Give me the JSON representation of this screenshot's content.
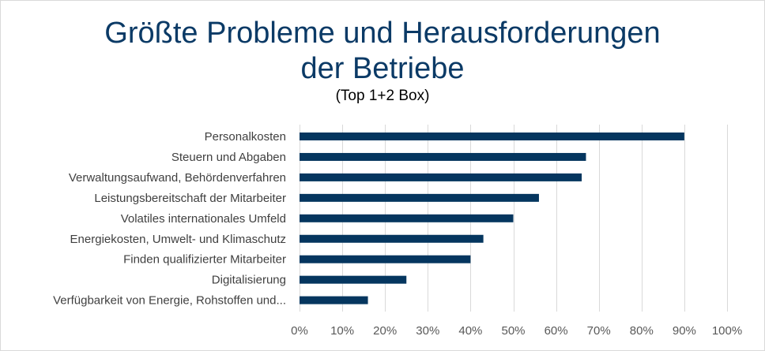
{
  "colors": {
    "bar": "#05365f",
    "grid": "#d9d9d9",
    "title": "#0b3a66"
  },
  "chart_data": {
    "type": "bar",
    "orientation": "horizontal",
    "title_line1": "Größte Probleme und Herausforderungen",
    "title_line2": "der Betriebe",
    "subtitle": "(Top 1+2 Box)",
    "categories": [
      "Personalkosten",
      "Steuern und Abgaben",
      "Verwaltungsaufwand, Behördenverfahren",
      "Leistungsbereitschaft der Mitarbeiter",
      "Volatiles internationales Umfeld",
      "Energiekosten, Umwelt- und Klimaschutz",
      "Finden qualifizierter Mitarbeiter",
      "Digitalisierung",
      "Verfügbarkeit von Energie, Rohstoffen und..."
    ],
    "values": [
      90,
      67,
      66,
      56,
      50,
      43,
      40,
      25,
      16
    ],
    "xlim": [
      0,
      100
    ],
    "ticks": [
      "0%",
      "10%",
      "20%",
      "30%",
      "40%",
      "50%",
      "60%",
      "70%",
      "80%",
      "90%",
      "100%"
    ],
    "xlabel": "",
    "ylabel": "",
    "grid": true,
    "legend": false
  }
}
